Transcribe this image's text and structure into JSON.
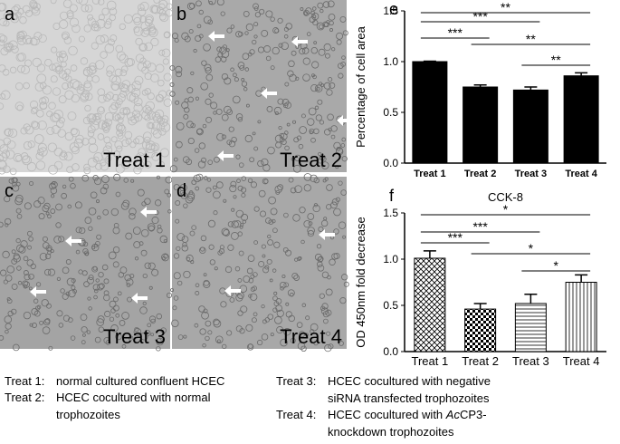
{
  "panels": [
    {
      "letter": "a",
      "label": "Treat 1"
    },
    {
      "letter": "b",
      "label": "Treat 2"
    },
    {
      "letter": "c",
      "label": "Treat 3"
    },
    {
      "letter": "d",
      "label": "Treat 4"
    }
  ],
  "chart_data": [
    {
      "type": "bar",
      "panel": "e",
      "y_label": "Percentage of cell area",
      "categories": [
        "Treat 1",
        "Treat 2",
        "Treat 3",
        "Treat 4"
      ],
      "values": [
        1.0,
        0.75,
        0.72,
        0.86
      ],
      "errors": [
        0.005,
        0.02,
        0.03,
        0.03
      ],
      "color": "#000000",
      "ylim": [
        0,
        1.5
      ],
      "yticks": [
        {
          "value": 0,
          "label": "0.0"
        },
        0.5,
        {
          "value": 1,
          "label": "1.0"
        },
        1.5
      ],
      "significance": [
        {
          "pair": [
            "Treat 1",
            "Treat 4"
          ],
          "label": "**"
        },
        {
          "pair": [
            "Treat 1",
            "Treat 3"
          ],
          "label": "***"
        },
        {
          "pair": [
            "Treat 1",
            "Treat 2"
          ],
          "label": "***"
        },
        {
          "pair": [
            "Treat 2",
            "Treat 4"
          ],
          "label": "**"
        },
        {
          "pair": [
            "Treat 3",
            "Treat 4"
          ],
          "label": "**"
        }
      ]
    },
    {
      "type": "bar",
      "panel": "f",
      "title": "CCK-8",
      "y_label": "OD 450nm fold decrease",
      "categories": [
        "Treat 1",
        "Treat 2",
        "Treat 3",
        "Treat 4"
      ],
      "values": [
        1.01,
        0.46,
        0.52,
        0.75
      ],
      "errors": [
        0.08,
        0.06,
        0.1,
        0.08
      ],
      "color": "#000000",
      "ylim": [
        0,
        1.5
      ],
      "yticks": [
        {
          "value": 0,
          "label": "0.0"
        },
        0.5,
        {
          "value": 1,
          "label": "1.0"
        },
        1.5
      ],
      "significance": [
        {
          "pair": [
            "Treat 1",
            "Treat 4"
          ],
          "label": "*"
        },
        {
          "pair": [
            "Treat 1",
            "Treat 3"
          ],
          "label": "***"
        },
        {
          "pair": [
            "Treat 1",
            "Treat 2"
          ],
          "label": "***"
        },
        {
          "pair": [
            "Treat 2",
            "Treat 4"
          ],
          "label": "*"
        },
        {
          "pair": [
            "Treat 3",
            "Treat 4"
          ],
          "label": "*"
        }
      ]
    }
  ],
  "legend": [
    {
      "key": "Treat 1:",
      "lines": [
        [
          "normal cultured confluent HCEC"
        ]
      ]
    },
    {
      "key": "Treat 2:",
      "lines": [
        [
          "HCEC cocultured with normal"
        ],
        [
          "trophozoites"
        ]
      ]
    },
    {
      "key": "Treat 3:",
      "lines": [
        [
          "HCEC cocultured with negative"
        ],
        [
          "siRNA transfected trophozoites"
        ]
      ]
    },
    {
      "key": "Treat 4:",
      "lines": [
        [
          "HCEC cocultured with ",
          "Ac",
          "CP3-"
        ],
        [
          "knockdown trophozoites"
        ]
      ]
    }
  ]
}
